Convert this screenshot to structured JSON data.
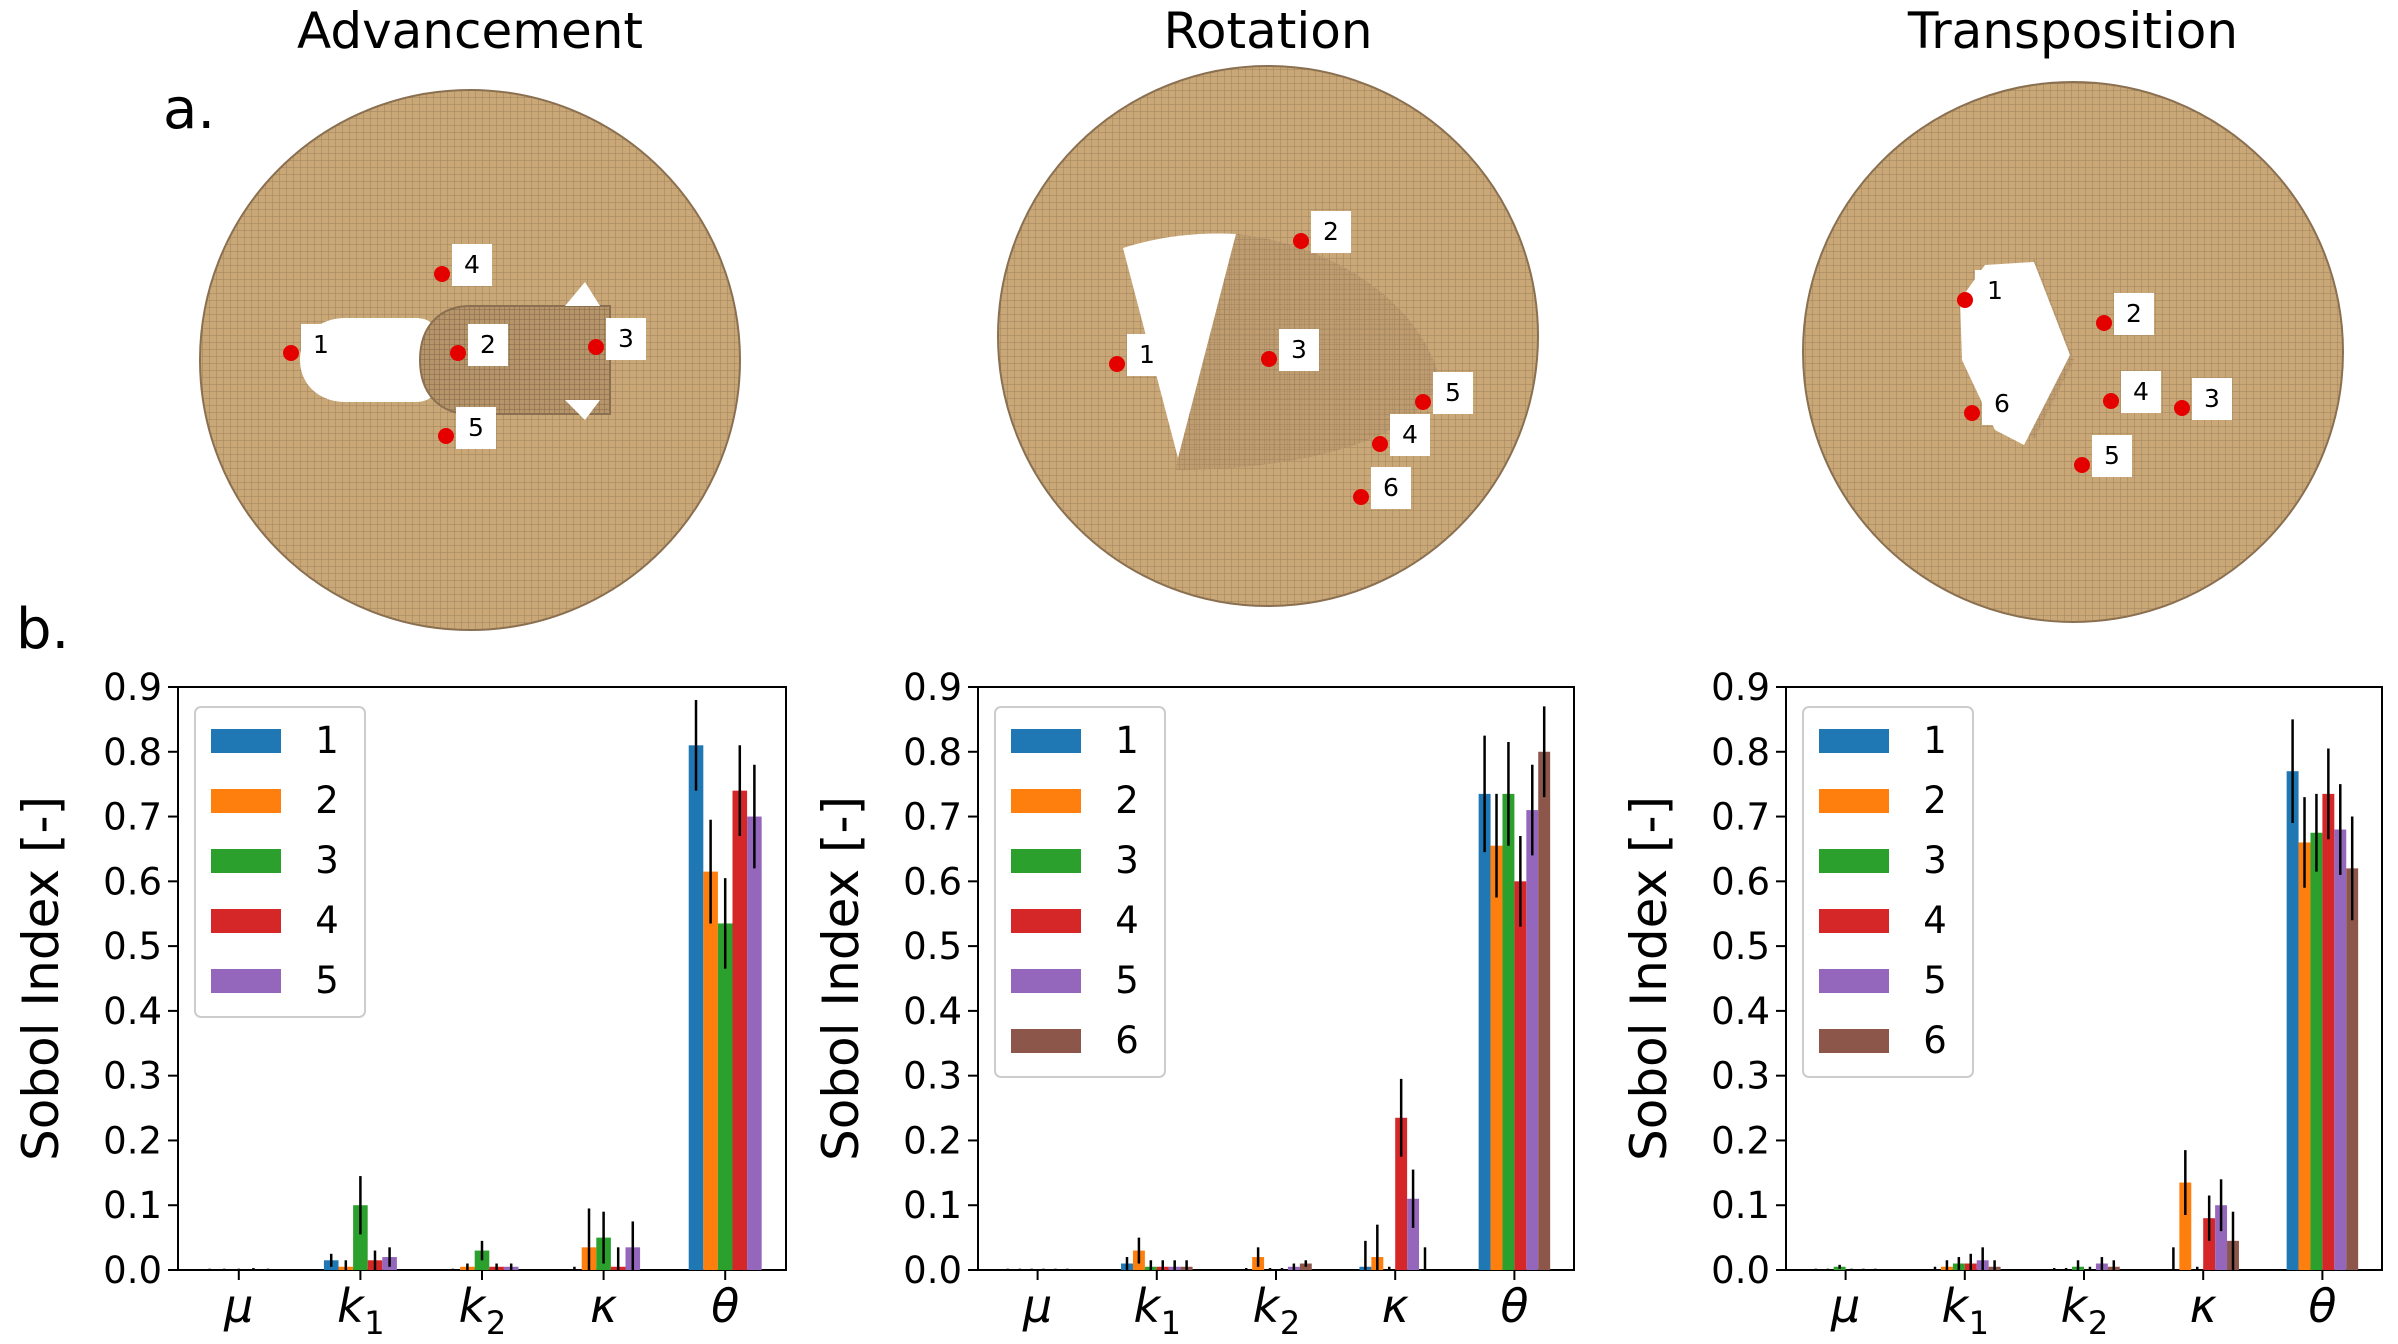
{
  "panel_labels": {
    "a": "a.",
    "b": "b."
  },
  "colors": {
    "mesh_fill": "#c9a777",
    "mesh_line": "#7d6548",
    "marker": "#e50000",
    "series": [
      "#1f77b4",
      "#ff7f0e",
      "#2ca02c",
      "#d62728",
      "#9467bd",
      "#8c564b"
    ]
  },
  "ylabel": "Sobol Index [-]",
  "y_ticks": [
    "0.0",
    "0.1",
    "0.2",
    "0.3",
    "0.4",
    "0.5",
    "0.6",
    "0.7",
    "0.8",
    "0.9"
  ],
  "x_categories": [
    {
      "main": "μ",
      "sub": ""
    },
    {
      "main": "k",
      "sub": "1"
    },
    {
      "main": "k",
      "sub": "2"
    },
    {
      "main": "κ",
      "sub": ""
    },
    {
      "main": "θ",
      "sub": ""
    }
  ],
  "meshes": [
    {
      "title": "Advancement",
      "points": [
        "1",
        "2",
        "3",
        "4",
        "5"
      ]
    },
    {
      "title": "Rotation",
      "points": [
        "1",
        "2",
        "3",
        "4",
        "5",
        "6"
      ]
    },
    {
      "title": "Transposition",
      "points": [
        "1",
        "2",
        "3",
        "4",
        "5",
        "6"
      ]
    }
  ],
  "chart_data": [
    {
      "type": "bar",
      "title": "Advancement",
      "xlabel": "",
      "ylabel": "Sobol Index [-]",
      "ylim": [
        0,
        0.9
      ],
      "categories": [
        "μ",
        "k1",
        "k2",
        "κ",
        "θ"
      ],
      "legend": "top-left",
      "series": [
        {
          "name": "1",
          "values": [
            0.0,
            0.015,
            0.0,
            0.0,
            0.81
          ],
          "errors": [
            0.002,
            0.01,
            0.002,
            0.005,
            0.07
          ]
        },
        {
          "name": "2",
          "values": [
            0.0,
            0.005,
            0.005,
            0.035,
            0.615
          ],
          "errors": [
            0.002,
            0.01,
            0.005,
            0.06,
            0.08
          ]
        },
        {
          "name": "3",
          "values": [
            0.0,
            0.1,
            0.03,
            0.05,
            0.535
          ],
          "errors": [
            0.002,
            0.045,
            0.015,
            0.04,
            0.07
          ]
        },
        {
          "name": "4",
          "values": [
            0.0,
            0.015,
            0.005,
            0.005,
            0.74
          ],
          "errors": [
            0.003,
            0.015,
            0.005,
            0.03,
            0.07
          ]
        },
        {
          "name": "5",
          "values": [
            0.0,
            0.02,
            0.005,
            0.035,
            0.7
          ],
          "errors": [
            0.002,
            0.015,
            0.005,
            0.04,
            0.08
          ]
        }
      ]
    },
    {
      "type": "bar",
      "title": "Rotation",
      "xlabel": "",
      "ylabel": "Sobol Index [-]",
      "ylim": [
        0,
        0.9
      ],
      "categories": [
        "μ",
        "k1",
        "k2",
        "κ",
        "θ"
      ],
      "legend": "top-left",
      "series": [
        {
          "name": "1",
          "values": [
            0.0,
            0.01,
            0.0,
            0.005,
            0.735
          ],
          "errors": [
            0.002,
            0.01,
            0.003,
            0.04,
            0.09
          ]
        },
        {
          "name": "2",
          "values": [
            0.0,
            0.03,
            0.02,
            0.02,
            0.655
          ],
          "errors": [
            0.002,
            0.02,
            0.015,
            0.05,
            0.08
          ]
        },
        {
          "name": "3",
          "values": [
            0.0,
            0.005,
            0.0,
            0.0,
            0.735
          ],
          "errors": [
            0.002,
            0.01,
            0.003,
            0.005,
            0.08
          ]
        },
        {
          "name": "4",
          "values": [
            0.0,
            0.005,
            0.0,
            0.235,
            0.6
          ],
          "errors": [
            0.002,
            0.01,
            0.003,
            0.06,
            0.07
          ]
        },
        {
          "name": "5",
          "values": [
            0.0,
            0.005,
            0.005,
            0.11,
            0.71
          ],
          "errors": [
            0.002,
            0.01,
            0.005,
            0.045,
            0.07
          ]
        },
        {
          "name": "6",
          "values": [
            0.0,
            0.005,
            0.01,
            0.0,
            0.8
          ],
          "errors": [
            0.002,
            0.01,
            0.005,
            0.035,
            0.07
          ]
        }
      ]
    },
    {
      "type": "bar",
      "title": "Transposition",
      "xlabel": "",
      "ylabel": "Sobol Index [-]",
      "ylim": [
        0,
        0.9
      ],
      "categories": [
        "μ",
        "k1",
        "k2",
        "κ",
        "θ"
      ],
      "legend": "top-left",
      "series": [
        {
          "name": "1",
          "values": [
            0.0,
            0.0,
            0.0,
            0.0,
            0.77
          ],
          "errors": [
            0.002,
            0.005,
            0.003,
            0.035,
            0.08
          ]
        },
        {
          "name": "2",
          "values": [
            0.0,
            0.005,
            0.0,
            0.135,
            0.66
          ],
          "errors": [
            0.002,
            0.01,
            0.003,
            0.05,
            0.07
          ]
        },
        {
          "name": "3",
          "values": [
            0.005,
            0.01,
            0.005,
            0.0,
            0.675
          ],
          "errors": [
            0.003,
            0.01,
            0.01,
            0.005,
            0.06
          ]
        },
        {
          "name": "4",
          "values": [
            0.0,
            0.01,
            0.0,
            0.08,
            0.735
          ],
          "errors": [
            0.002,
            0.015,
            0.005,
            0.035,
            0.07
          ]
        },
        {
          "name": "5",
          "values": [
            0.0,
            0.015,
            0.01,
            0.1,
            0.68
          ],
          "errors": [
            0.002,
            0.02,
            0.01,
            0.04,
            0.07
          ]
        },
        {
          "name": "6",
          "values": [
            0.0,
            0.005,
            0.005,
            0.045,
            0.62
          ],
          "errors": [
            0.002,
            0.01,
            0.01,
            0.045,
            0.08
          ]
        }
      ]
    }
  ]
}
